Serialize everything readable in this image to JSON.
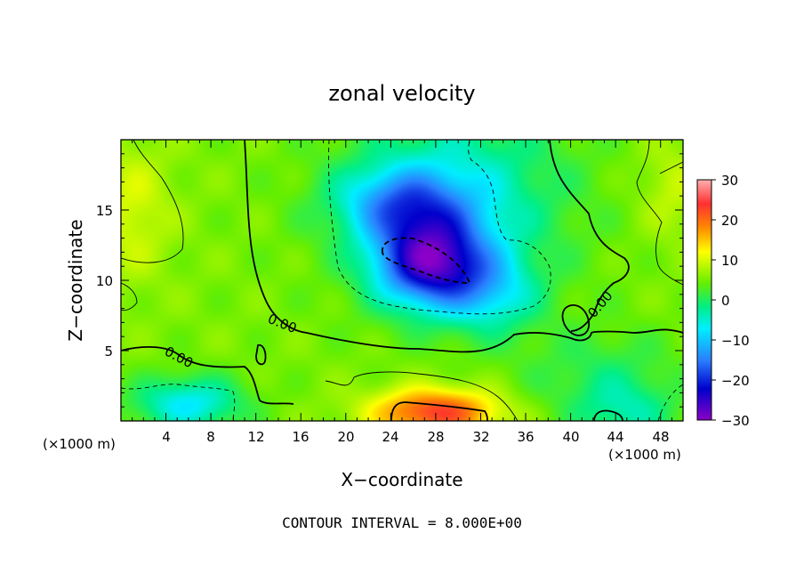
{
  "chart_data": {
    "type": "heatmap",
    "title": "zonal velocity",
    "xlabel": "X−coordinate",
    "ylabel": "Z−coordinate",
    "x_unit": "(×1000 m)",
    "x_unit_right": "(×1000 m)",
    "xlim": [
      0,
      50
    ],
    "ylim": [
      0,
      20
    ],
    "xticks": [
      4,
      8,
      12,
      16,
      20,
      24,
      28,
      32,
      36,
      40,
      44,
      48
    ],
    "yticks": [
      5,
      10,
      15
    ],
    "xtick_labels": [
      "4",
      "8",
      "12",
      "16",
      "20",
      "24",
      "28",
      "32",
      "36",
      "40",
      "44",
      "48"
    ],
    "ytick_labels": [
      "5",
      "10",
      "15"
    ],
    "colorbar": {
      "range": [
        -30,
        30
      ],
      "ticks": [
        30,
        20,
        10,
        0,
        -10,
        -20,
        -30
      ],
      "tick_labels": [
        "30",
        "20",
        "10",
        "0",
        "−10",
        "−20",
        "−30"
      ]
    },
    "contour_interval": 8.0,
    "contour_labels": [
      "0.00",
      "0.00",
      "0.00"
    ],
    "features": [
      {
        "kind": "min",
        "x": 28,
        "z": 11.5,
        "value": -22
      },
      {
        "kind": "min",
        "x": 26,
        "z": 15.5,
        "value": -12
      },
      {
        "kind": "min",
        "x": 6,
        "z": 1.0,
        "value": -10
      },
      {
        "kind": "max",
        "x": 28,
        "z": 0.8,
        "value": 20
      },
      {
        "kind": "max",
        "x": 2,
        "z": 15,
        "value": 8
      },
      {
        "kind": "max",
        "x": 48,
        "z": 16,
        "value": 7
      }
    ]
  },
  "note": "CONTOUR INTERVAL = 8.000E+00"
}
